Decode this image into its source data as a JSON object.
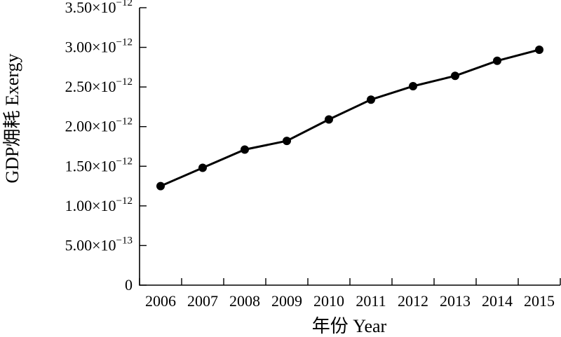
{
  "chart_data": {
    "type": "line",
    "xlabel": "年份 Year",
    "ylabel": "GDP㶲耗 Exergy",
    "categories": [
      "2006",
      "2007",
      "2008",
      "2009",
      "2010",
      "2011",
      "2012",
      "2013",
      "2014",
      "2015"
    ],
    "series": [
      {
        "values": [
          1.25e-12,
          1.48e-12,
          1.71e-12,
          1.82e-12,
          2.09e-12,
          2.34e-12,
          2.51e-12,
          2.64e-12,
          2.83e-12,
          2.97e-12
        ]
      }
    ],
    "ylim": [
      0,
      3.5e-12
    ],
    "y_ticks": [
      {
        "value": 0,
        "mantissa": "0",
        "exponent": ""
      },
      {
        "value": 5e-13,
        "mantissa": "5.00×10",
        "exponent": "−13"
      },
      {
        "value": 1e-12,
        "mantissa": "1.00×10",
        "exponent": "−12"
      },
      {
        "value": 1.5e-12,
        "mantissa": "1.50×10",
        "exponent": "−12"
      },
      {
        "value": 2e-12,
        "mantissa": "2.00×10",
        "exponent": "−12"
      },
      {
        "value": 2.5e-12,
        "mantissa": "2.50×10",
        "exponent": "−12"
      },
      {
        "value": 3e-12,
        "mantissa": "3.00×10",
        "exponent": "−12"
      },
      {
        "value": 3.5e-12,
        "mantissa": "3.50×10",
        "exponent": "−12"
      }
    ],
    "grid": false,
    "legend": "none",
    "line_color": "#000000",
    "marker": "filled-circle"
  }
}
